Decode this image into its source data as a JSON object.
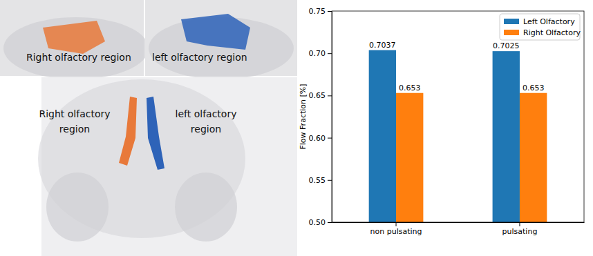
{
  "chart_data": {
    "type": "bar",
    "categories": [
      "non pulsating",
      "pulsating"
    ],
    "series": [
      {
        "name": "Left Olfactory",
        "color": "#1f77b4",
        "values": [
          0.7037,
          0.7025
        ]
      },
      {
        "name": "Right Olfactory",
        "color": "#ff7f0e",
        "values": [
          0.653,
          0.653
        ]
      }
    ],
    "y_label": "Flow Fraction [%]",
    "ylim": [
      0.5,
      0.75
    ],
    "yticks": [
      {
        "value": 0.5,
        "label": "0.50"
      },
      0.55,
      {
        "value": 0.6,
        "label": "0.60"
      },
      0.65,
      {
        "value": 0.7,
        "label": "0.70"
      },
      0.75
    ],
    "grid": false,
    "legend": "upper right",
    "data_labels": true
  },
  "illustration": {
    "top_labels": [
      "Right olfactory region",
      "left olfactory region"
    ],
    "bottom_labels": [
      [
        "Right olfactory",
        "region"
      ],
      [
        "left olfactory",
        "region"
      ]
    ]
  }
}
